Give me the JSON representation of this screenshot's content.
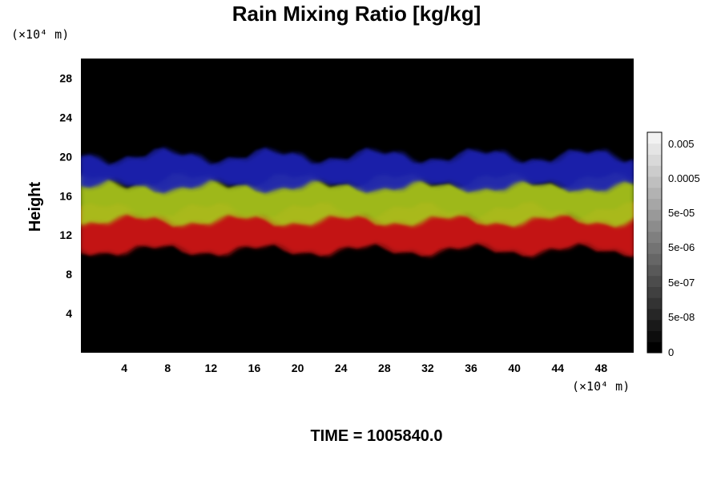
{
  "chart_data": {
    "type": "heatmap",
    "title": "Rain Mixing Ratio [kg/kg]",
    "ylabel": "Height",
    "y_unit_label": "(×10⁴ m)",
    "x_unit_label": "(×10⁴ m)",
    "xlim": [
      0,
      51
    ],
    "ylim": [
      0,
      30
    ],
    "x_ticks": [
      "4",
      "8",
      "12",
      "16",
      "20",
      "24",
      "28",
      "32",
      "36",
      "40",
      "44",
      "48"
    ],
    "x_tick_values": [
      4,
      8,
      12,
      16,
      20,
      24,
      28,
      32,
      36,
      40,
      44,
      48
    ],
    "y_ticks": [
      "4",
      "8",
      "12",
      "16",
      "20",
      "24",
      "28"
    ],
    "y_tick_values": [
      4,
      8,
      12,
      16,
      20,
      24,
      28
    ],
    "background_color": "#000000",
    "layers": [
      {
        "band": "upper",
        "color": "#1a22b4",
        "y_range": [
          17,
          20
        ],
        "x_range": [
          0,
          51
        ]
      },
      {
        "band": "middle",
        "color": "#a8c41a",
        "y_range": [
          13.5,
          17.5
        ],
        "x_range": [
          0,
          51
        ]
      },
      {
        "band": "lower",
        "color": "#d01818",
        "y_range": [
          10.5,
          14.5
        ],
        "x_range": [
          0,
          51
        ]
      }
    ],
    "colorbar": {
      "labels": [
        "0.005",
        "0.0005",
        "5e-05",
        "5e-06",
        "5e-07",
        "5e-08",
        "0"
      ],
      "label_values": [
        0.005,
        0.0005,
        5e-05,
        5e-06,
        5e-07,
        5e-08,
        0
      ],
      "steps": 20,
      "color_low": "#000000",
      "color_high": "#f2f2f2"
    },
    "footer": "TIME = 1005840.0"
  }
}
